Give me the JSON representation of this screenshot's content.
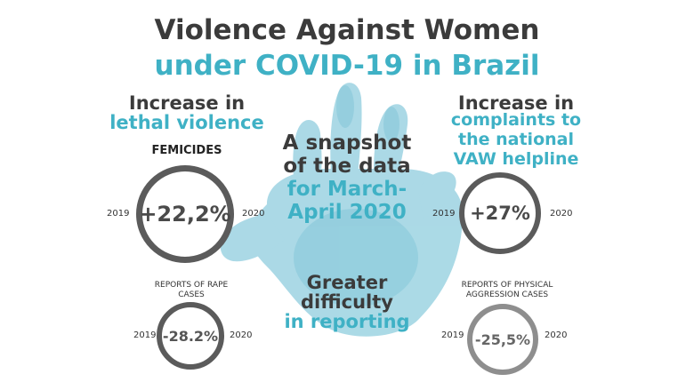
{
  "title": {
    "line1": "Violence Against Women",
    "line2": "under COVID-19 in Brazil"
  },
  "left_top": {
    "heading_dark": "Increase in",
    "heading_teal": "lethal violence",
    "label": "FEMICIDES",
    "value": "+22,2%",
    "year_start": "2019",
    "year_end": "2020"
  },
  "left_bottom": {
    "label": "REPORTS OF RAPE CASES",
    "value": "-28.2%",
    "year_start": "2019",
    "year_end": "2020"
  },
  "center_top": {
    "line1": "A snapshot",
    "line2": "of the data",
    "line3": "for March-",
    "line4": "April 2020"
  },
  "center_bottom": {
    "line1": "Greater",
    "line2": "difficulty",
    "line3": "in reporting"
  },
  "right_top": {
    "heading_dark": "Increase in",
    "heading_teal1": "complaints to",
    "heading_teal2": "the national",
    "heading_teal3": "VAW helpline",
    "value": "+27%",
    "year_start": "2019",
    "year_end": "2020"
  },
  "right_bottom": {
    "label": "REPORTS OF PHYSICAL AGGRESSION CASES",
    "value": "-25,5%",
    "year_start": "2019",
    "year_end": "2020"
  },
  "colors": {
    "dark_text": "#3b3b3b",
    "teal_text": "#3fb1c5",
    "ring_dark": "#5b5b5b",
    "ring_light": "#8e8e8e",
    "hand": "#8fcdde"
  }
}
